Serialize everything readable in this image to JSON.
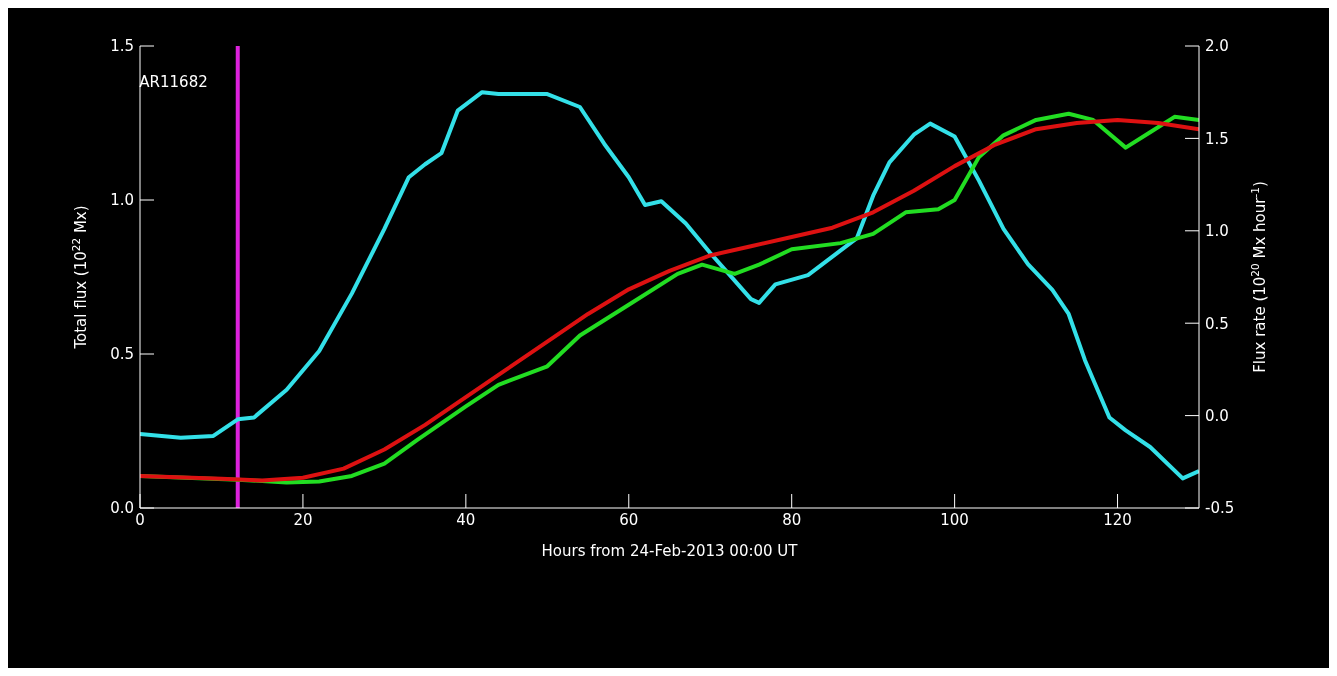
{
  "chart_data": {
    "type": "line",
    "xlabel": "Hours from 24-Feb-2013 00:00 UT",
    "ylabel": "Total flux (10$^{22}$ Mx)",
    "y2label": "Flux rate (10$^{20}$ Mx hour$^{-1}$)",
    "xlim": [
      0,
      130
    ],
    "xticks": [
      0,
      20,
      40,
      60,
      80,
      100,
      120
    ],
    "ylim": [
      0,
      1.5
    ],
    "yticks": [
      {
        "value": 0,
        "label": "0.0"
      },
      0.5,
      {
        "value": 1,
        "label": "1.0"
      },
      1.5
    ],
    "y2lim": [
      -0.5,
      2
    ],
    "y2ticks": [
      -0.5,
      {
        "value": 0,
        "label": "0.0"
      },
      0.5,
      {
        "value": 1,
        "label": "1.0"
      },
      1.5,
      {
        "value": 2,
        "label": "2.0"
      }
    ],
    "grid": false,
    "legend": false,
    "marker": "none",
    "line_style": "solid",
    "ref_lines": [
      {
        "axis": "x",
        "value": 12,
        "label": "AR11682",
        "color": "#dd22dd"
      }
    ],
    "series": [
      {
        "color": "#33e0e8",
        "axis": "y2",
        "x": [
          0,
          5,
          9,
          12,
          14,
          18,
          22,
          26,
          30,
          33,
          35,
          37,
          39,
          42,
          44,
          50,
          54,
          57,
          60,
          62,
          64,
          67,
          70,
          73,
          75,
          76,
          78,
          82,
          85,
          88,
          90,
          92,
          95,
          97,
          100,
          103,
          106,
          109,
          112,
          114,
          116,
          119,
          121,
          124,
          128,
          130
        ],
        "values": [
          -0.1,
          -0.12,
          -0.11,
          -0.02,
          -0.01,
          0.14,
          0.35,
          0.66,
          1.01,
          1.29,
          1.36,
          1.42,
          1.65,
          1.75,
          1.74,
          1.74,
          1.67,
          1.47,
          1.29,
          1.14,
          1.16,
          1.04,
          0.88,
          0.73,
          0.63,
          0.61,
          0.71,
          0.76,
          0.86,
          0.96,
          1.19,
          1.37,
          1.52,
          1.58,
          1.51,
          1.27,
          1.01,
          0.82,
          0.68,
          0.55,
          0.3,
          -0.01,
          -0.08,
          -0.17,
          -0.34,
          -0.3
        ]
      },
      {
        "color": "#22dd22",
        "x": [
          0,
          12,
          18,
          22,
          26,
          30,
          34,
          40,
          44,
          50,
          54,
          60,
          66,
          69,
          73,
          76,
          80,
          86,
          90,
          94,
          98,
          100,
          103,
          106,
          110,
          114,
          117,
          121,
          124,
          127,
          130
        ],
        "values": [
          0.104,
          0.092,
          0.083,
          0.086,
          0.104,
          0.144,
          0.22,
          0.33,
          0.4,
          0.46,
          0.56,
          0.66,
          0.76,
          0.79,
          0.76,
          0.79,
          0.84,
          0.86,
          0.89,
          0.96,
          0.97,
          1.0,
          1.14,
          1.21,
          1.26,
          1.28,
          1.26,
          1.17,
          1.22,
          1.27,
          1.26
        ]
      },
      {
        "color": "#dd1111",
        "x": [
          0,
          10,
          15,
          20,
          25,
          30,
          35,
          40,
          45,
          50,
          55,
          60,
          65,
          70,
          75,
          80,
          85,
          90,
          95,
          100,
          105,
          110,
          115,
          120,
          125,
          130
        ],
        "values": [
          0.104,
          0.095,
          0.089,
          0.098,
          0.128,
          0.19,
          0.27,
          0.36,
          0.45,
          0.54,
          0.63,
          0.71,
          0.77,
          0.82,
          0.85,
          0.88,
          0.91,
          0.96,
          1.03,
          1.11,
          1.18,
          1.23,
          1.25,
          1.26,
          1.25,
          1.23
        ]
      }
    ]
  }
}
